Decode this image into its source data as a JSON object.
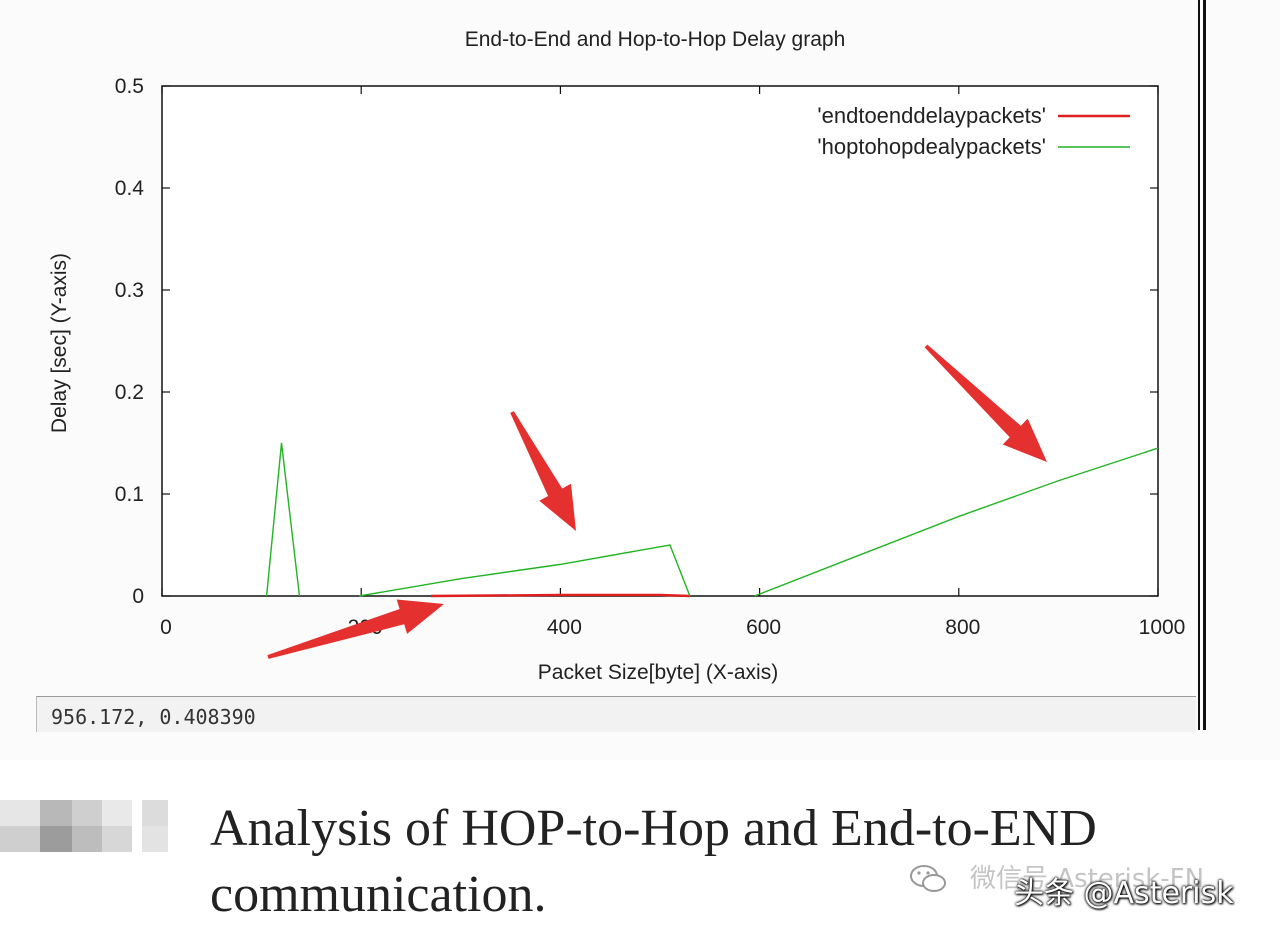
{
  "chart_data": {
    "type": "line",
    "title": "End-to-End and Hop-to-Hop Delay graph",
    "xlabel": "Packet Size[byte] (X-axis)",
    "ylabel": "Delay [sec] (Y-axis)",
    "xlim": [
      0,
      1000
    ],
    "ylim": [
      0,
      0.5
    ],
    "x_ticks": [
      "0",
      "200",
      "400",
      "600",
      "800",
      "1000"
    ],
    "y_ticks": [
      "0",
      "0.1",
      "0.2",
      "0.3",
      "0.4",
      "0.5"
    ],
    "legend_position": "top-right",
    "grid": false,
    "series": [
      {
        "name": "'endtoenddelaypackets'",
        "color": "#e02020",
        "points": [
          [
            270,
            0.0
          ],
          [
            400,
            0.001
          ],
          [
            500,
            0.001
          ],
          [
            530,
            0.0
          ]
        ]
      },
      {
        "name": "'hoptohopdealypackets'",
        "color": "#22b422",
        "segments": [
          [
            [
              105,
              0.0
            ],
            [
              120,
              0.15
            ],
            [
              138,
              0.0
            ]
          ],
          [
            [
              198,
              0.0
            ],
            [
              300,
              0.017
            ],
            [
              400,
              0.031
            ],
            [
              510,
              0.05
            ],
            [
              530,
              0.0
            ]
          ],
          [
            [
              595,
              0.0
            ],
            [
              700,
              0.04
            ],
            [
              800,
              0.078
            ],
            [
              900,
              0.113
            ],
            [
              1000,
              0.145
            ]
          ]
        ]
      }
    ],
    "annotations": [
      {
        "type": "arrow",
        "color": "#e53030"
      },
      {
        "type": "arrow",
        "color": "#e53030"
      },
      {
        "type": "arrow",
        "color": "#e53030"
      }
    ]
  },
  "status_readout": "956.172, 0.408390",
  "caption": "Analysis of HOP-to-Hop and End-to-END communication.",
  "watermark": {
    "faded_text": "微信号 Asterisk-FN",
    "main_text": "头条 @Asterisk",
    "icon": "wechat-icon"
  }
}
